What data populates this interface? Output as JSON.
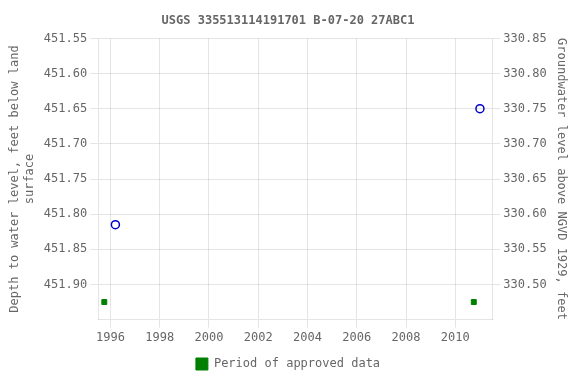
{
  "chart_data": {
    "type": "scatter",
    "title": "USGS 335513114191701 B-07-20 27ABC1",
    "ylabel": "Depth to water level, feet below land\nsurface",
    "y2label": "Groundwater level above NGVD 1929, feet",
    "xlim": [
      1995.5,
      2011.5
    ],
    "xticks": [
      1996,
      1998,
      2000,
      2002,
      2004,
      2006,
      2008,
      2010
    ],
    "ylim": [
      451.95,
      451.55
    ],
    "yticks": [
      451.55,
      {
        "value": 451.6,
        "label": "451.60"
      },
      451.65,
      {
        "value": 451.7,
        "label": "451.70"
      },
      451.75,
      {
        "value": 451.8,
        "label": "451.80"
      },
      451.85,
      {
        "value": 451.9,
        "label": "451.90"
      }
    ],
    "y2lim": [
      330.45,
      330.85
    ],
    "y2ticks": [
      330.85,
      {
        "value": 330.8,
        "label": "330.80"
      },
      330.75,
      {
        "value": 330.7,
        "label": "330.70"
      },
      330.65,
      {
        "value": 330.6,
        "label": "330.60"
      },
      330.55,
      {
        "value": 330.5,
        "label": "330.50"
      }
    ],
    "grid": true,
    "legend": "bottom",
    "series": [
      {
        "color": "#0000cc",
        "marker": "open_circle",
        "x": [
          1996.2,
          2011.0
        ],
        "values": [
          451.815,
          451.65
        ]
      },
      {
        "name": "Period of approved data",
        "color": "#008000",
        "marker": "square",
        "x": [
          1995.75,
          2010.75
        ],
        "values": [
          451.925,
          451.925
        ]
      }
    ]
  }
}
